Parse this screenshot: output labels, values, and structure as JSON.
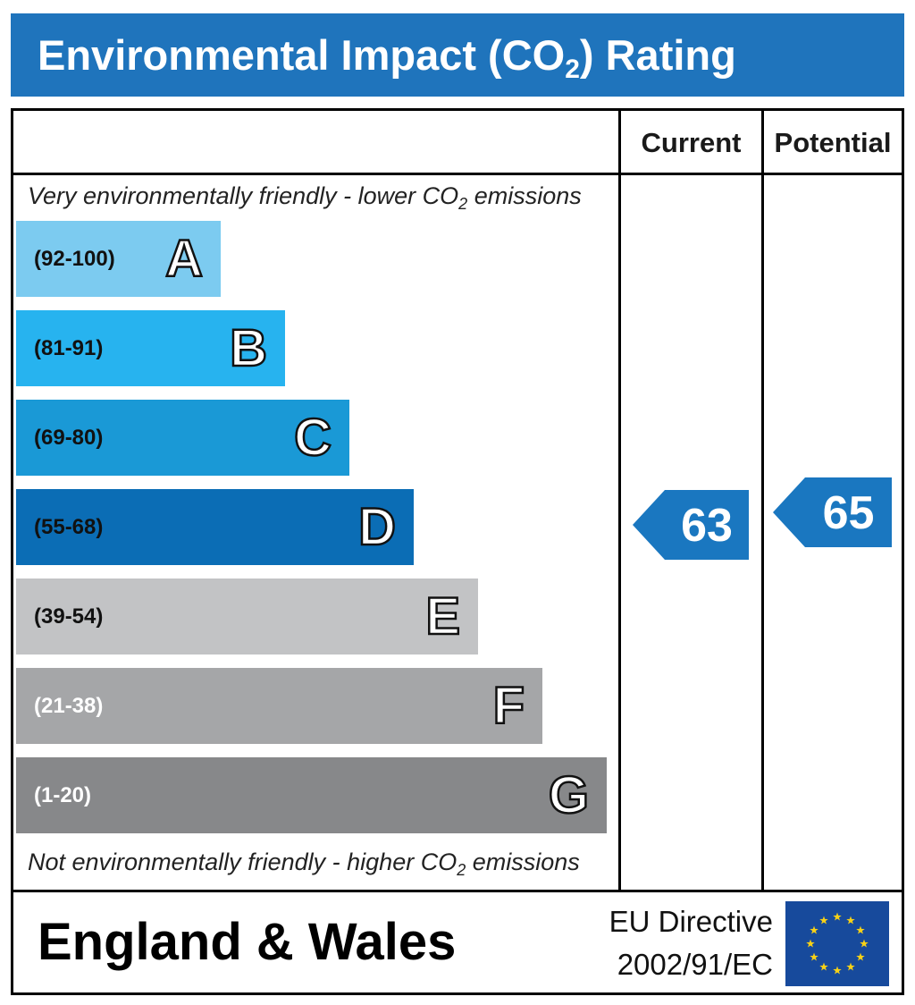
{
  "title": {
    "prefix": "Environmental Impact (CO",
    "sub": "2",
    "suffix": ") Rating"
  },
  "columns": {
    "current": "Current",
    "potential": "Potential"
  },
  "top_note": {
    "prefix": "Very environmentally friendly - lower CO",
    "sub": "2",
    "suffix": " emissions"
  },
  "bottom_note": {
    "prefix": "Not environmentally friendly - higher CO",
    "sub": "2",
    "suffix": " emissions"
  },
  "chart_data": {
    "type": "bar",
    "bands": [
      {
        "letter": "A",
        "range": "(92-100)",
        "color": "#7ccbf0",
        "text_color": "#111111"
      },
      {
        "letter": "B",
        "range": "(81-91)",
        "color": "#27b3ef",
        "text_color": "#111111"
      },
      {
        "letter": "C",
        "range": "(69-80)",
        "color": "#1a99d6",
        "text_color": "#111111"
      },
      {
        "letter": "D",
        "range": "(55-68)",
        "color": "#0b6db5",
        "text_color": "#111111"
      },
      {
        "letter": "E",
        "range": "(39-54)",
        "color": "#c2c3c5",
        "text_color": "#111111"
      },
      {
        "letter": "F",
        "range": "(21-38)",
        "color": "#a5a6a8",
        "text_color": "#ffffff"
      },
      {
        "letter": "G",
        "range": "(1-20)",
        "color": "#87888a",
        "text_color": "#ffffff"
      }
    ],
    "current": {
      "value": 63,
      "band": "D",
      "color": "#1a77c0"
    },
    "potential": {
      "value": 65,
      "band": "D",
      "color": "#1a77c0"
    }
  },
  "footer": {
    "country": "England & Wales",
    "directive_line1": "EU Directive",
    "directive_line2": "2002/91/EC",
    "flag_colors": {
      "background": "#174a9c",
      "stars": "#f7d117"
    }
  }
}
